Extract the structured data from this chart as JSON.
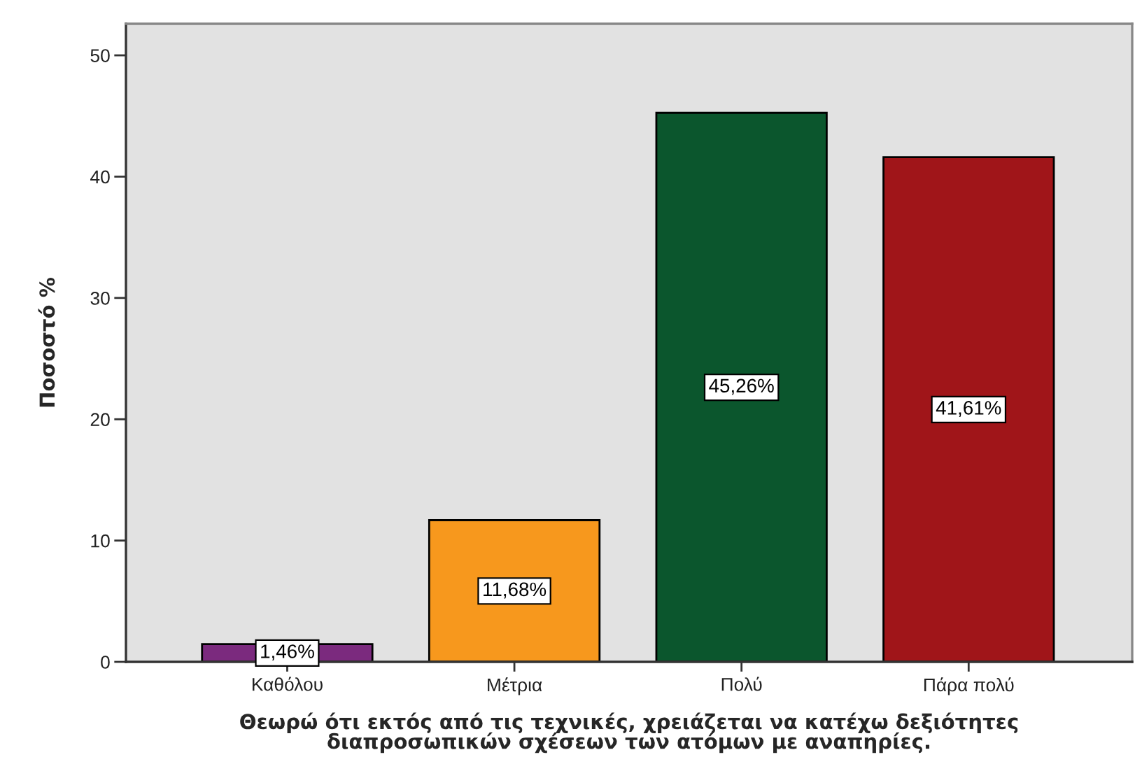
{
  "chart_data": {
    "type": "bar",
    "xlabel": "Θεωρώ ότι εκτός από τις τεχνικές, χρειάζεται να κατέχω δεξιότητες\nδιαπροσωπικών σχέσεων των ατόμων με αναπηρίες.",
    "ylabel": "Ποσοστό %",
    "categories": [
      "Καθόλου",
      "Μέτρια",
      "Πολύ",
      "Πάρα πολύ"
    ],
    "values": [
      1.46,
      11.68,
      45.26,
      41.61
    ],
    "value_labels": [
      "1,46%",
      "11,68%",
      "45,26%",
      "41,61%"
    ],
    "colors": [
      "#7b2a7e",
      "#f7981d",
      "#0b562d",
      "#a01519"
    ],
    "ylim": [
      0,
      52.6
    ],
    "yticks": [
      0,
      10,
      20,
      30,
      40,
      50
    ]
  }
}
